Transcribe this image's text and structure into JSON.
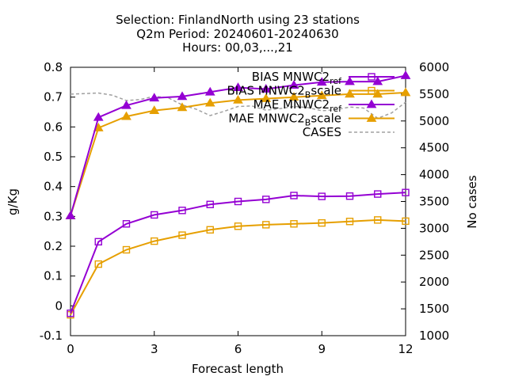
{
  "chart_data": {
    "type": "line",
    "title_lines": [
      "Selection: FinlandNorth using    23 stations",
      "Q2m   Period: 20240601-20240630",
      "Hours: 00,03,...,21"
    ],
    "xlabel": "Forecast length",
    "ylabel": "g/Kg",
    "y2label": "No cases",
    "xlim": [
      0,
      12
    ],
    "ylim": [
      -0.1,
      0.8
    ],
    "y2lim": [
      1000,
      6000
    ],
    "xticks": [
      0,
      3,
      6,
      9,
      12
    ],
    "yticks": [
      -0.1,
      0,
      0.1,
      0.2,
      0.3,
      0.4,
      0.5,
      0.6,
      0.7,
      0.8
    ],
    "ytick_labels": [
      "-0.1",
      "0",
      "0.1",
      "0.2",
      "0.3",
      "0.4",
      "0.5",
      "0.6",
      "0.7",
      "0.8"
    ],
    "y2ticks": [
      1000,
      1500,
      2000,
      2500,
      3000,
      3500,
      4000,
      4500,
      5000,
      5500,
      6000
    ],
    "grid": false,
    "legend_position": "top-right",
    "x": [
      0,
      1,
      2,
      3,
      4,
      5,
      6,
      7,
      8,
      9,
      10,
      11,
      12
    ],
    "series": [
      {
        "name": "BIAS MNWC2_ref",
        "legend_main": "BIAS MNWC2",
        "legend_sub": "ref",
        "color": "#9400d3",
        "marker": "square",
        "axis": "y",
        "values": [
          -0.025,
          0.215,
          0.275,
          0.305,
          0.32,
          0.34,
          0.35,
          0.357,
          0.37,
          0.367,
          0.368,
          0.375,
          0.38
        ]
      },
      {
        "name": "BIAS MNWC2_Bscale",
        "legend_main": "BIAS MNWC2",
        "legend_sub": "B",
        "legend_tail": "scale",
        "color": "#e69f00",
        "marker": "square",
        "axis": "y",
        "values": [
          -0.03,
          0.14,
          0.188,
          0.217,
          0.237,
          0.255,
          0.267,
          0.272,
          0.275,
          0.278,
          0.283,
          0.288,
          0.284
        ]
      },
      {
        "name": "MAE MNWC2_ref",
        "legend_main": "MAE MNWC2",
        "legend_sub": "ref",
        "color": "#9400d3",
        "marker": "triangle",
        "axis": "y",
        "values": [
          0.302,
          0.632,
          0.672,
          0.697,
          0.702,
          0.717,
          0.732,
          0.727,
          0.74,
          0.75,
          0.752,
          0.752,
          0.772
        ]
      },
      {
        "name": "MAE MNWC2_Bscale",
        "legend_main": "MAE MNWC2",
        "legend_sub": "B",
        "legend_tail": "scale",
        "color": "#e69f00",
        "marker": "triangle",
        "axis": "y",
        "values": [
          0.302,
          0.597,
          0.635,
          0.655,
          0.665,
          0.68,
          0.69,
          0.695,
          0.7,
          0.705,
          0.71,
          0.71,
          0.715
        ]
      },
      {
        "name": "CASES",
        "color": "#a0a0a0",
        "marker": "none",
        "dashed": true,
        "axis": "y2",
        "x": [
          0,
          0.5,
          1,
          1.5,
          2,
          2.5,
          3,
          3.5,
          4,
          4.5,
          5,
          5.5,
          6,
          6.5,
          7,
          7.5,
          8,
          8.5,
          9,
          9.5,
          10,
          10.5,
          11,
          11.5,
          12
        ],
        "values": [
          5500,
          5510,
          5520,
          5480,
          5380,
          5400,
          5460,
          5430,
          5300,
          5220,
          5100,
          5180,
          5270,
          5280,
          5200,
          5230,
          5270,
          5250,
          5190,
          5210,
          5260,
          5240,
          5050,
          5150,
          5350
        ]
      }
    ]
  }
}
